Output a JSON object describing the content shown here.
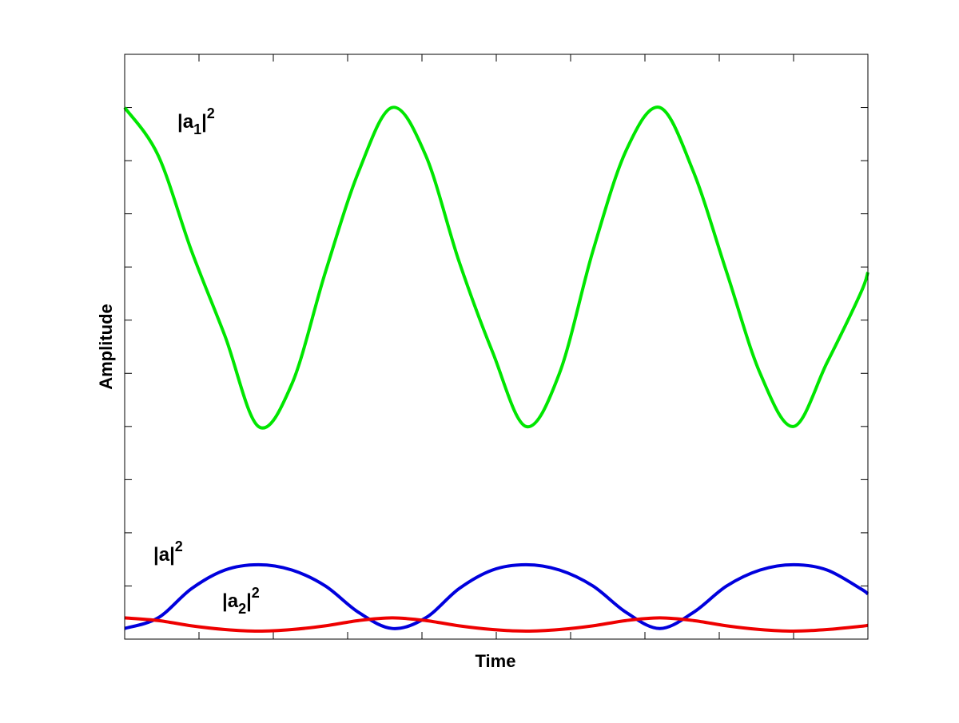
{
  "chart_data": {
    "type": "line",
    "title": "",
    "xlabel": "Time",
    "ylabel": "Amplitude",
    "xlim": [
      0,
      1
    ],
    "ylim": [
      0,
      11
    ],
    "grid": false,
    "x_ticks": [
      0,
      0.1,
      0.2,
      0.3,
      0.4,
      0.5,
      0.6,
      0.7,
      0.8,
      0.9,
      1
    ],
    "y_ticks": [
      1,
      2,
      3,
      4,
      5,
      6,
      7,
      8,
      9,
      10
    ],
    "tick_labels_shown": false,
    "series": [
      {
        "name": "|a1|^2",
        "label": {
          "base": "|a",
          "sub": "1",
          "tail": "|",
          "sup": "2"
        },
        "color": "#00e600",
        "x": [
          0,
          0.045,
          0.09,
          0.135,
          0.18,
          0.225,
          0.27,
          0.315,
          0.36,
          0.405,
          0.45,
          0.495,
          0.54,
          0.585,
          0.63,
          0.675,
          0.72,
          0.765,
          0.81,
          0.855,
          0.9,
          0.945,
          0.99,
          1.0
        ],
        "y": [
          10,
          9.1,
          7.3,
          5.7,
          4.0,
          4.8,
          6.9,
          8.8,
          10,
          9.1,
          7.1,
          5.4,
          4.0,
          5.0,
          7.3,
          9.2,
          10,
          8.8,
          6.9,
          5.0,
          4.0,
          5.2,
          6.5,
          6.9
        ]
      },
      {
        "name": "|a|^2",
        "label": {
          "base": "|a",
          "sub": "",
          "tail": "|",
          "sup": "2"
        },
        "color": "#0000dd",
        "x": [
          0,
          0.045,
          0.09,
          0.135,
          0.18,
          0.225,
          0.27,
          0.315,
          0.36,
          0.405,
          0.45,
          0.495,
          0.54,
          0.585,
          0.63,
          0.675,
          0.72,
          0.765,
          0.81,
          0.855,
          0.9,
          0.945,
          0.99,
          1.0
        ],
        "y": [
          0.2,
          0.4,
          0.95,
          1.3,
          1.4,
          1.3,
          1.0,
          0.5,
          0.2,
          0.4,
          0.95,
          1.3,
          1.4,
          1.3,
          1.0,
          0.5,
          0.2,
          0.5,
          1.0,
          1.3,
          1.4,
          1.3,
          0.95,
          0.85
        ]
      },
      {
        "name": "|a2|^2",
        "label": {
          "base": "|a",
          "sub": "2",
          "tail": "|",
          "sup": "2"
        },
        "color": "#ee0000",
        "x": [
          0,
          0.045,
          0.09,
          0.135,
          0.18,
          0.225,
          0.27,
          0.315,
          0.36,
          0.405,
          0.45,
          0.495,
          0.54,
          0.585,
          0.63,
          0.675,
          0.72,
          0.765,
          0.81,
          0.855,
          0.9,
          0.945,
          0.99,
          1.0
        ],
        "y": [
          0.4,
          0.35,
          0.25,
          0.18,
          0.15,
          0.18,
          0.25,
          0.35,
          0.4,
          0.35,
          0.25,
          0.18,
          0.15,
          0.18,
          0.25,
          0.35,
          0.4,
          0.35,
          0.25,
          0.18,
          0.15,
          0.18,
          0.24,
          0.26
        ]
      }
    ]
  }
}
